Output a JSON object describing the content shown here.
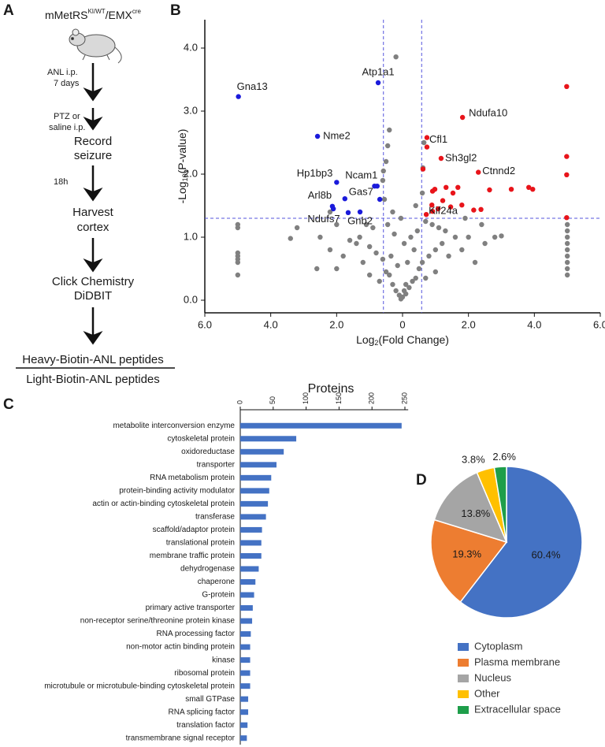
{
  "panels": [
    "A",
    "B",
    "C",
    "D"
  ],
  "panel_a": {
    "genotype": {
      "base": "mMetRS",
      "sup1": "KI/WT",
      "mid": "/EMX",
      "sup2": "cre"
    },
    "arrow_labels": [
      [
        "ANL i.p.",
        "7 days"
      ],
      [
        "PTZ or",
        "saline i.p."
      ],
      [
        "18h"
      ]
    ],
    "steps": [
      [
        "Record",
        "seizure"
      ],
      [
        "Harvest",
        "cortex"
      ],
      [
        "Click Chemistry",
        "DiDBIT"
      ]
    ],
    "ratio": {
      "numerator": "Heavy-Biotin-ANL peptides",
      "denominator": "Light-Biotin-ANL peptides"
    }
  },
  "chart_data": [
    {
      "type": "scatter",
      "xlabel": {
        "text": "Log",
        "sub": "2",
        "rest": "(Fold Change)"
      },
      "ylabel": {
        "text": "-Log",
        "sub": "10",
        "rest": "(P-value)"
      },
      "xlim": [
        -6,
        6
      ],
      "ylim": [
        -0.2,
        4.45
      ],
      "xticks": [
        {
          "value": -6,
          "label": "6.0"
        },
        {
          "value": -4,
          "label": "4.0"
        },
        {
          "value": -2,
          "label": "2.0"
        },
        0,
        {
          "value": 2,
          "label": "2.0"
        },
        {
          "value": 4,
          "label": "4.0"
        },
        {
          "value": 6,
          "label": "6.0"
        }
      ],
      "yticks": [
        {
          "value": 0,
          "label": "0.0"
        },
        {
          "value": 1,
          "label": "1.0"
        },
        {
          "value": 2,
          "label": "2.0"
        },
        {
          "value": 3,
          "label": "3.0"
        },
        {
          "value": 4,
          "label": "4.0"
        }
      ],
      "threshold_lines": {
        "x": [
          -0.58,
          0.58
        ],
        "y": [
          1.3
        ],
        "color": "#5555dd"
      },
      "series": [
        {
          "color": "#808080",
          "x": [
            0,
            0.1,
            -0.1,
            0.2,
            -0.2,
            0.3,
            -0.3,
            0.4,
            -0.4,
            0.5,
            -0.5,
            0.15,
            -0.15,
            0.35,
            -0.35,
            0.6,
            -0.6,
            0.8,
            -0.8,
            1.0,
            -1.0,
            1.2,
            -1.2,
            1.4,
            -1.4,
            1.6,
            -1.6,
            1.8,
            -1.8,
            2.0,
            -2.0,
            2.2,
            -2.2,
            2.5,
            -2.5,
            2.8,
            3.0,
            -2.6,
            -3.4,
            -3.2,
            0.9,
            -0.9,
            0.45,
            -0.45,
            0.25,
            -0.25,
            0.05,
            -0.05,
            0.7,
            1.1,
            -1.1,
            1.3,
            -2.2,
            -0.55,
            -0.6,
            -0.58,
            -0.5,
            -0.45,
            -0.4,
            -0.2,
            0.6,
            0.62,
            0.65,
            0.4,
            -0.3,
            -2.0,
            2.4,
            1.9,
            -1.3,
            -0.7,
            0.7,
            -1.0,
            1.0,
            0.1,
            -0.05,
            0.05,
            -5,
            -5,
            -5,
            -5,
            -5,
            -5,
            -5,
            5,
            5,
            5,
            5,
            5,
            5,
            5,
            5,
            5
          ],
          "values": [
            0.05,
            0.1,
            0.08,
            0.2,
            0.15,
            0.3,
            0.25,
            0.35,
            0.4,
            0.5,
            0.45,
            0.6,
            0.55,
            0.8,
            0.7,
            0.6,
            0.65,
            0.7,
            0.75,
            0.8,
            0.85,
            0.9,
            0.6,
            0.7,
            0.9,
            1.0,
            0.95,
            0.8,
            0.7,
            1.0,
            0.5,
            0.6,
            0.8,
            0.9,
            1.0,
            1.0,
            1.02,
            0.5,
            0.98,
            1.15,
            1.2,
            1.15,
            1.1,
            1.2,
            1.0,
            1.05,
            0.9,
            1.3,
            1.25,
            1.15,
            1.2,
            1.1,
            1.4,
            1.6,
            1.9,
            2.05,
            2.2,
            2.45,
            2.7,
            3.86,
            1.7,
            2.1,
            2.5,
            1.5,
            1.4,
            1.2,
            1.2,
            1.3,
            1.0,
            0.3,
            0.35,
            0.4,
            0.45,
            0.25,
            0.02,
            0.15,
            1.2,
            1.15,
            0.75,
            0.7,
            0.65,
            0.6,
            0.4,
            0.4,
            0.5,
            0.6,
            0.7,
            0.8,
            0.9,
            1.0,
            1.1,
            1.2
          ],
          "labels": null
        },
        {
          "color": "#1a1adb",
          "x": [
            -4.98,
            -0.74,
            -2.58,
            -2.0,
            -0.77,
            -1.75,
            -2.13,
            -1.65,
            -1.29,
            -0.69,
            -0.85,
            -2.1
          ],
          "values": [
            3.23,
            3.45,
            2.6,
            1.87,
            1.81,
            1.61,
            1.49,
            1.39,
            1.4,
            1.6,
            1.81,
            1.45
          ],
          "labels": [
            "Gna13",
            "Atp1a1",
            "Nme2",
            "Hp1bp3",
            "Ncam1",
            "Gas7",
            "Arl8b",
            "Ndufs7",
            "Gnb2",
            null,
            null,
            null
          ]
        },
        {
          "color": "#e8141a",
          "x": [
            1.82,
            0.74,
            1.17,
            2.3,
            0.91,
            4.98,
            4.98,
            4.98,
            4.98,
            0.74,
            0.62,
            0.91,
            0.98,
            1.32,
            1.68,
            1.53,
            1.22,
            0.89,
            1.08,
            1.46,
            1.8,
            2.16,
            2.64,
            3.3,
            3.95,
            3.83,
            2.38,
            0.72
          ],
          "values": [
            2.9,
            2.43,
            2.25,
            2.03,
            1.41,
            3.39,
            2.28,
            1.99,
            1.31,
            2.58,
            2.08,
            1.73,
            1.76,
            1.79,
            1.79,
            1.7,
            1.58,
            1.51,
            1.45,
            1.48,
            1.51,
            1.43,
            1.75,
            1.76,
            1.76,
            1.79,
            1.44,
            1.36
          ],
          "labels": [
            "Ndufa10",
            "Cfl1",
            "Sh3gl2",
            "Ctnnd2",
            "Kif24a",
            null,
            null,
            null,
            null,
            null,
            null,
            null,
            null,
            null,
            null,
            null,
            null,
            null,
            null,
            null,
            null,
            null,
            null,
            null,
            null,
            null,
            null,
            null
          ]
        }
      ]
    },
    {
      "type": "barh",
      "title": "Proteins",
      "color": "#4472c4",
      "xlim": [
        0,
        255
      ],
      "xticks": [
        0,
        50,
        100,
        150,
        200,
        250
      ],
      "categories": [
        "metabolite interconversion enzyme",
        "cytoskeletal protein",
        "oxidoreductase",
        "transporter",
        "RNA metabolism protein",
        "protein-binding activity modulator",
        "actin or actin-binding cytoskeletal protein",
        "transferase",
        "scaffold/adaptor protein",
        "translational protein",
        "membrane traffic protein",
        "dehydrogenase",
        "chaperone",
        "G-protein",
        "primary active transporter",
        "non-receptor serine/threonine protein kinase",
        "RNA processing factor",
        "non-motor actin binding protein",
        "kinase",
        "ribosomal protein",
        "microtubule or microtubule-binding cytoskeletal protein",
        "small GTPase",
        "RNA splicing factor",
        "translation factor",
        "transmembrane signal receptor"
      ],
      "values": [
        245,
        85,
        66,
        55,
        47,
        44,
        42,
        39,
        33,
        32,
        32,
        28,
        23,
        21,
        19,
        18,
        16,
        15,
        15,
        15,
        15,
        12,
        12,
        11,
        10
      ]
    },
    {
      "type": "pie",
      "categories": [
        "Cytoplasm",
        "Plasma membrane",
        "Nucleus",
        "Other",
        "Extracellular space"
      ],
      "values": [
        60.4,
        19.3,
        13.8,
        3.8,
        2.6
      ],
      "value_labels": [
        "60.4%",
        "19.3%",
        "13.8%",
        "3.8%",
        "2.6%"
      ],
      "colors": [
        "#4472c4",
        "#ed7d31",
        "#a5a5a5",
        "#ffc000",
        "#1e9e4a"
      ]
    }
  ]
}
